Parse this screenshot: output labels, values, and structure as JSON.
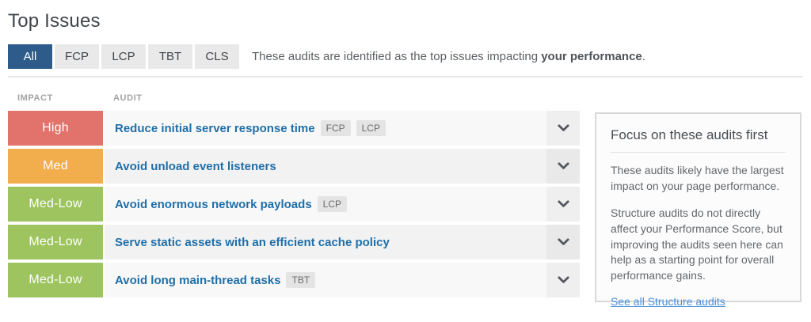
{
  "page": {
    "title": "Top Issues"
  },
  "filters": {
    "tabs": [
      {
        "label": "All",
        "active": true
      },
      {
        "label": "FCP",
        "active": false
      },
      {
        "label": "LCP",
        "active": false
      },
      {
        "label": "TBT",
        "active": false
      },
      {
        "label": "CLS",
        "active": false
      }
    ],
    "description_prefix": "These audits are identified as the top issues impacting ",
    "description_bold": "your performance",
    "description_suffix": "."
  },
  "table": {
    "headers": {
      "impact": "IMPACT",
      "audit": "AUDIT"
    },
    "rows": [
      {
        "impact": "High",
        "impact_color": "#e2726c",
        "audit": "Reduce initial server response time",
        "tags": [
          "FCP",
          "LCP"
        ]
      },
      {
        "impact": "Med",
        "impact_color": "#f2ad4c",
        "audit": "Avoid unload event listeners",
        "tags": []
      },
      {
        "impact": "Med-Low",
        "impact_color": "#9dc45f",
        "audit": "Avoid enormous network payloads",
        "tags": [
          "LCP"
        ]
      },
      {
        "impact": "Med-Low",
        "impact_color": "#9dc45f",
        "audit": "Serve static assets with an efficient cache policy",
        "tags": []
      },
      {
        "impact": "Med-Low",
        "impact_color": "#9dc45f",
        "audit": "Avoid long main-thread tasks",
        "tags": [
          "TBT"
        ]
      }
    ]
  },
  "sidebar": {
    "heading": "Focus on these audits first",
    "paragraphs": [
      "These audits likely have the largest impact on your page performance.",
      "Structure audits do not directly affect your Performance Score, but improving the audits seen here can help as a starting point for overall performance gains."
    ],
    "link_label": "See all Structure audits"
  },
  "colors": {
    "active_tab": "#2d5c8a",
    "audit_link": "#1f6fa9",
    "sidebar_link": "#4a90d9",
    "chevron": "#55585c"
  }
}
